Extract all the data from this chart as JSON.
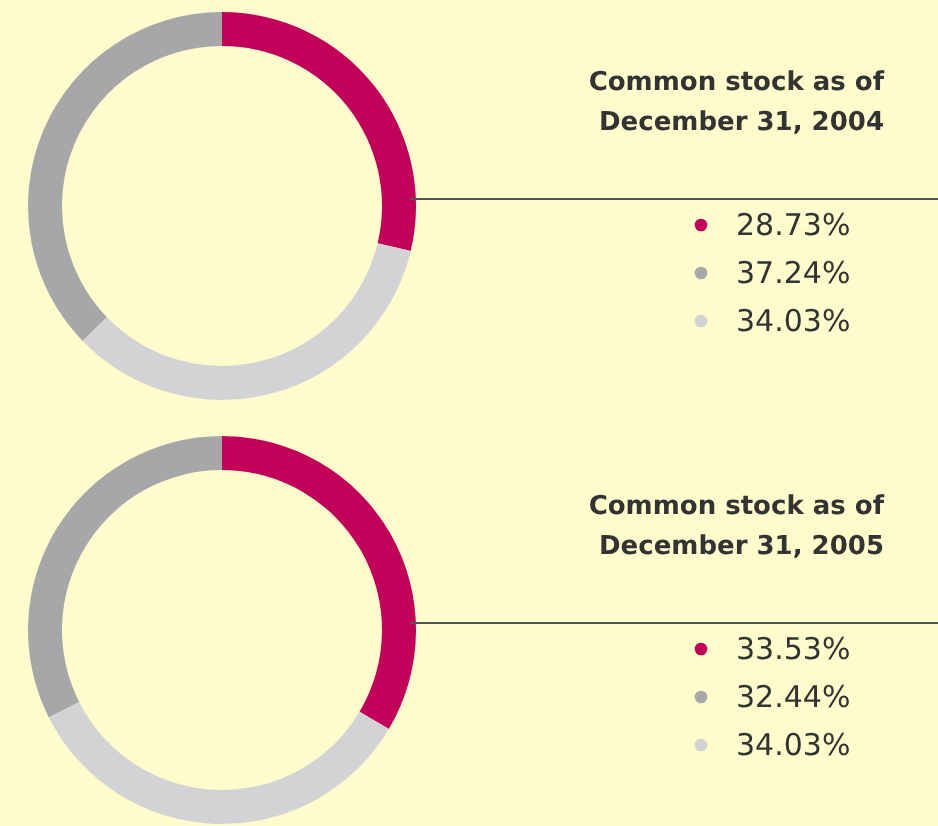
{
  "chart_data": [
    {
      "type": "donut",
      "title": "Common stock as of December 31, 2004",
      "categories": [
        "28.73%",
        "37.24%",
        "34.03%"
      ],
      "values": [
        28.73,
        37.24,
        34.03
      ],
      "colors": [
        "#c2005a",
        "#a7a7a9",
        "#d3d3d5"
      ],
      "legend": "right"
    },
    {
      "type": "donut",
      "title": "Common stock as of December 31, 2005",
      "categories": [
        "33.53%",
        "32.44%",
        "34.03%"
      ],
      "values": [
        33.53,
        32.44,
        34.03
      ],
      "colors": [
        "#c2005a",
        "#a7a7a9",
        "#d3d3d5"
      ],
      "legend": "right"
    }
  ]
}
